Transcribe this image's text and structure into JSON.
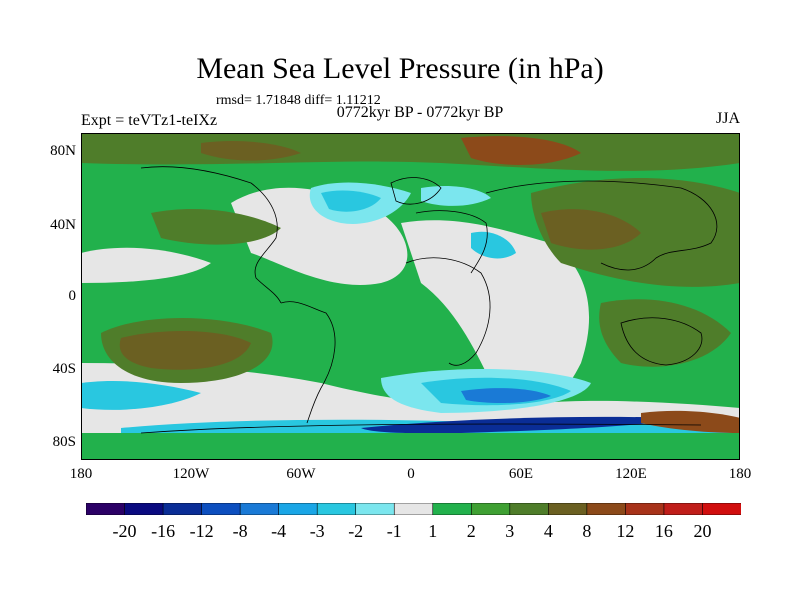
{
  "map": {
    "title": "Mean Sea Level Pressure (in hPa)",
    "stats": "rmsd= 1.71848 diff= 1.11212",
    "subtitle": "0772kyr BP - 0772kyr BP",
    "experiment": "Expt = teVTz1-teIXz",
    "season": "JJA",
    "lat_labels": [
      "80N",
      "40N",
      "0",
      "40S",
      "80S"
    ],
    "lon_labels": [
      "180",
      "120W",
      "60W",
      "0",
      "60E",
      "120E",
      "180"
    ],
    "colorbar": {
      "colors": [
        "#2b0066",
        "#0a0a80",
        "#0a2d96",
        "#0d4fbf",
        "#1a7ad6",
        "#1aa6e6",
        "#29c7e0",
        "#7be6ee",
        "#e6e6e6",
        "#22b14c",
        "#3fa033",
        "#4f7d2a",
        "#6b6022",
        "#8c4a1a",
        "#a8331a",
        "#c01e1a",
        "#d10e0e"
      ],
      "labels": [
        "-20",
        "-16",
        "-12",
        "-8",
        "-4",
        "-3",
        "-2",
        "-1",
        "1",
        "2",
        "3",
        "4",
        "8",
        "12",
        "16",
        "20"
      ]
    },
    "field_colors": {
      "ocean_green": "#22b14c",
      "olive": "#4f7d2a",
      "dark_olive": "#6b6022",
      "brown": "#8c4a1a",
      "neutral": "#e6e6e6",
      "light_cyan": "#7be6ee",
      "cyan": "#29c7e0",
      "blue": "#1a7ad6",
      "dark_blue": "#0a2d96"
    }
  }
}
